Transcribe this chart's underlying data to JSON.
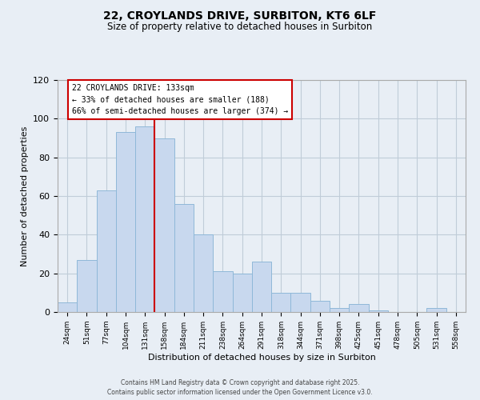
{
  "title": "22, CROYLANDS DRIVE, SURBITON, KT6 6LF",
  "subtitle": "Size of property relative to detached houses in Surbiton",
  "xlabel": "Distribution of detached houses by size in Surbiton",
  "ylabel": "Number of detached properties",
  "bar_labels": [
    "24sqm",
    "51sqm",
    "77sqm",
    "104sqm",
    "131sqm",
    "158sqm",
    "184sqm",
    "211sqm",
    "238sqm",
    "264sqm",
    "291sqm",
    "318sqm",
    "344sqm",
    "371sqm",
    "398sqm",
    "425sqm",
    "451sqm",
    "478sqm",
    "505sqm",
    "531sqm",
    "558sqm"
  ],
  "bar_values": [
    5,
    27,
    63,
    93,
    96,
    90,
    56,
    40,
    21,
    20,
    26,
    10,
    10,
    6,
    2,
    4,
    1,
    0,
    0,
    2,
    0
  ],
  "bar_color": "#c8d8ee",
  "bar_edge_color": "#8fb8d8",
  "ylim": [
    0,
    120
  ],
  "yticks": [
    0,
    20,
    40,
    60,
    80,
    100,
    120
  ],
  "vline_after_bar": 4,
  "vline_color": "#cc0000",
  "annotation_title": "22 CROYLANDS DRIVE: 133sqm",
  "annotation_line1": "← 33% of detached houses are smaller (188)",
  "annotation_line2": "66% of semi-detached houses are larger (374) →",
  "annotation_box_facecolor": "#ffffff",
  "annotation_box_edgecolor": "#cc0000",
  "footer1": "Contains HM Land Registry data © Crown copyright and database right 2025.",
  "footer2": "Contains public sector information licensed under the Open Government Licence v3.0.",
  "bg_color": "#e8eef5",
  "plot_bg_color": "#e8eef5",
  "grid_color": "#c0ccd8"
}
